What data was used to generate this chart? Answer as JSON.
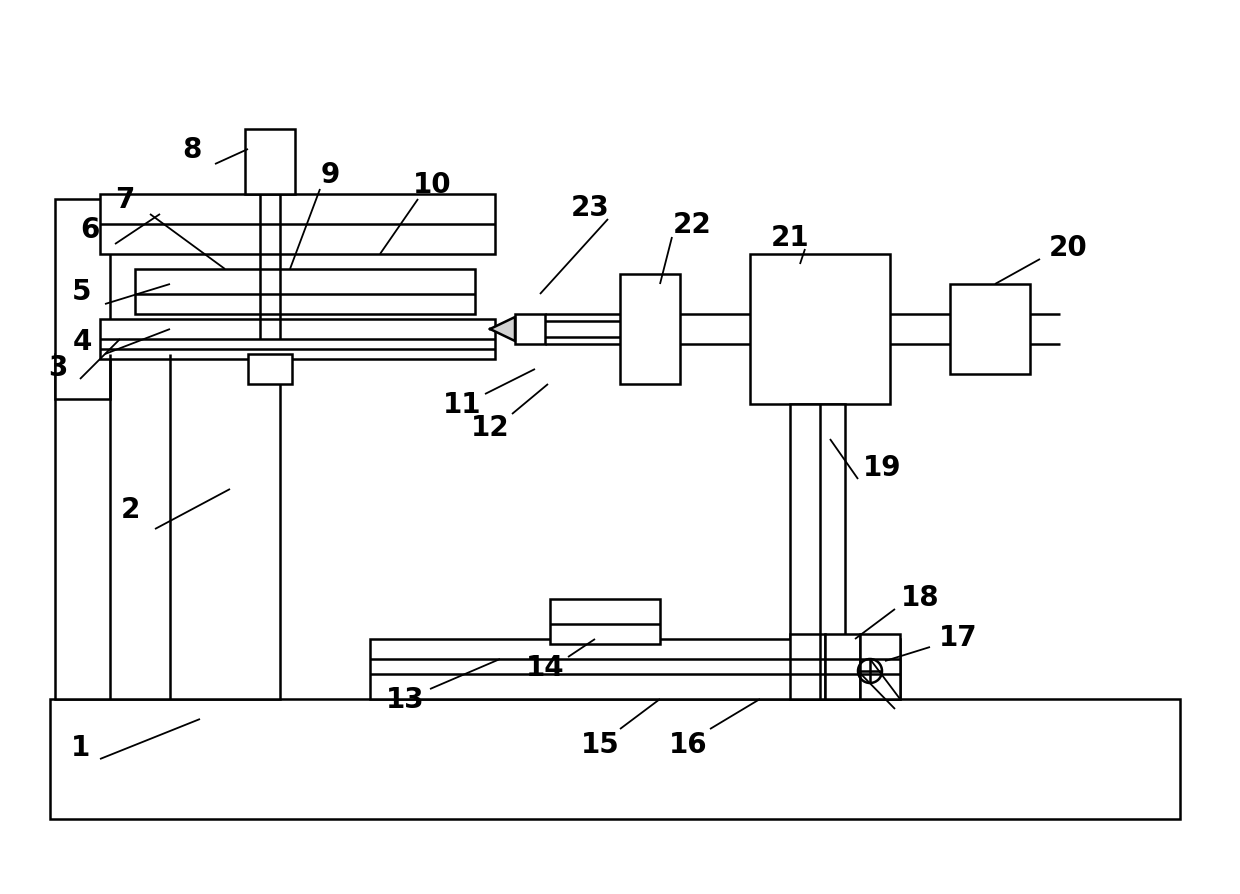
{
  "bg_color": "#ffffff",
  "lw": 1.8,
  "lw_thin": 1.3,
  "lw_thick": 2.5,
  "fs": 20,
  "fig_w": 12.4,
  "fig_h": 8.95
}
